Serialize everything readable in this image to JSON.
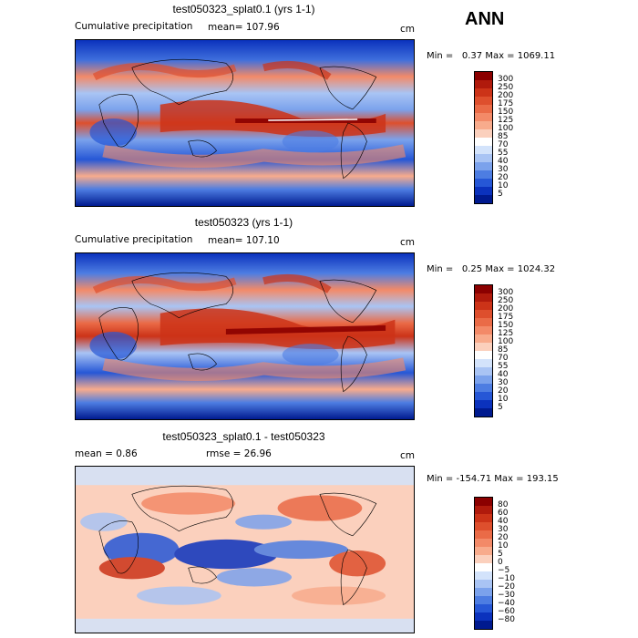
{
  "season": "ANN",
  "units": "cm",
  "panels": [
    {
      "title": "test050323_splat0.1 (yrs 1-1)",
      "field": "Cumulative precipitation",
      "mean_label": "mean=",
      "mean": "107.96",
      "min_label": "Min =",
      "min": "0.37",
      "max_label": "Max =",
      "max": "1069.11",
      "levels": [
        "300",
        "250",
        "200",
        "175",
        "150",
        "125",
        "100",
        "85",
        "70",
        "55",
        "40",
        "30",
        "20",
        "10",
        "5"
      ],
      "colors": [
        "#8b0000",
        "#b01a0c",
        "#cc3318",
        "#de4f2d",
        "#ea6b47",
        "#f38a68",
        "#f8ab8c",
        "#fbd0bd",
        "#ffffff",
        "#d3e3fb",
        "#a9c4f4",
        "#7ba2ec",
        "#4d7de2",
        "#2657d6",
        "#0b32bd",
        "#001a8f"
      ]
    },
    {
      "title": "test050323 (yrs 1-1)",
      "field": "Cumulative precipitation",
      "mean_label": "mean=",
      "mean": "107.10",
      "min_label": "Min =",
      "min": "0.25",
      "max_label": "Max =",
      "max": "1024.32",
      "levels": [
        "300",
        "250",
        "200",
        "175",
        "150",
        "125",
        "100",
        "85",
        "70",
        "55",
        "40",
        "30",
        "20",
        "10",
        "5"
      ],
      "colors": [
        "#8b0000",
        "#b01a0c",
        "#cc3318",
        "#de4f2d",
        "#ea6b47",
        "#f38a68",
        "#f8ab8c",
        "#fbd0bd",
        "#ffffff",
        "#d3e3fb",
        "#a9c4f4",
        "#7ba2ec",
        "#4d7de2",
        "#2657d6",
        "#0b32bd",
        "#001a8f"
      ]
    },
    {
      "title": "test050323_splat0.1 - test050323",
      "mean_label": "mean =",
      "mean": "0.86",
      "rmse_label": "rmse =",
      "rmse": "26.96",
      "min_label": "Min =",
      "min": "-154.71",
      "max_label": "Max =",
      "max": "193.15",
      "levels": [
        "80",
        "60",
        "40",
        "30",
        "20",
        "10",
        "5",
        "0",
        "−5",
        "−10",
        "−20",
        "−30",
        "−40",
        "−60",
        "−80"
      ],
      "colors": [
        "#8b0000",
        "#b01a0c",
        "#cc3318",
        "#de4f2d",
        "#ea6b47",
        "#f38a68",
        "#f8ab8c",
        "#fbd0bd",
        "#ffffff",
        "#d3e3fb",
        "#a9c4f4",
        "#7ba2ec",
        "#4d7de2",
        "#2657d6",
        "#0b32bd",
        "#001a8f"
      ]
    }
  ]
}
